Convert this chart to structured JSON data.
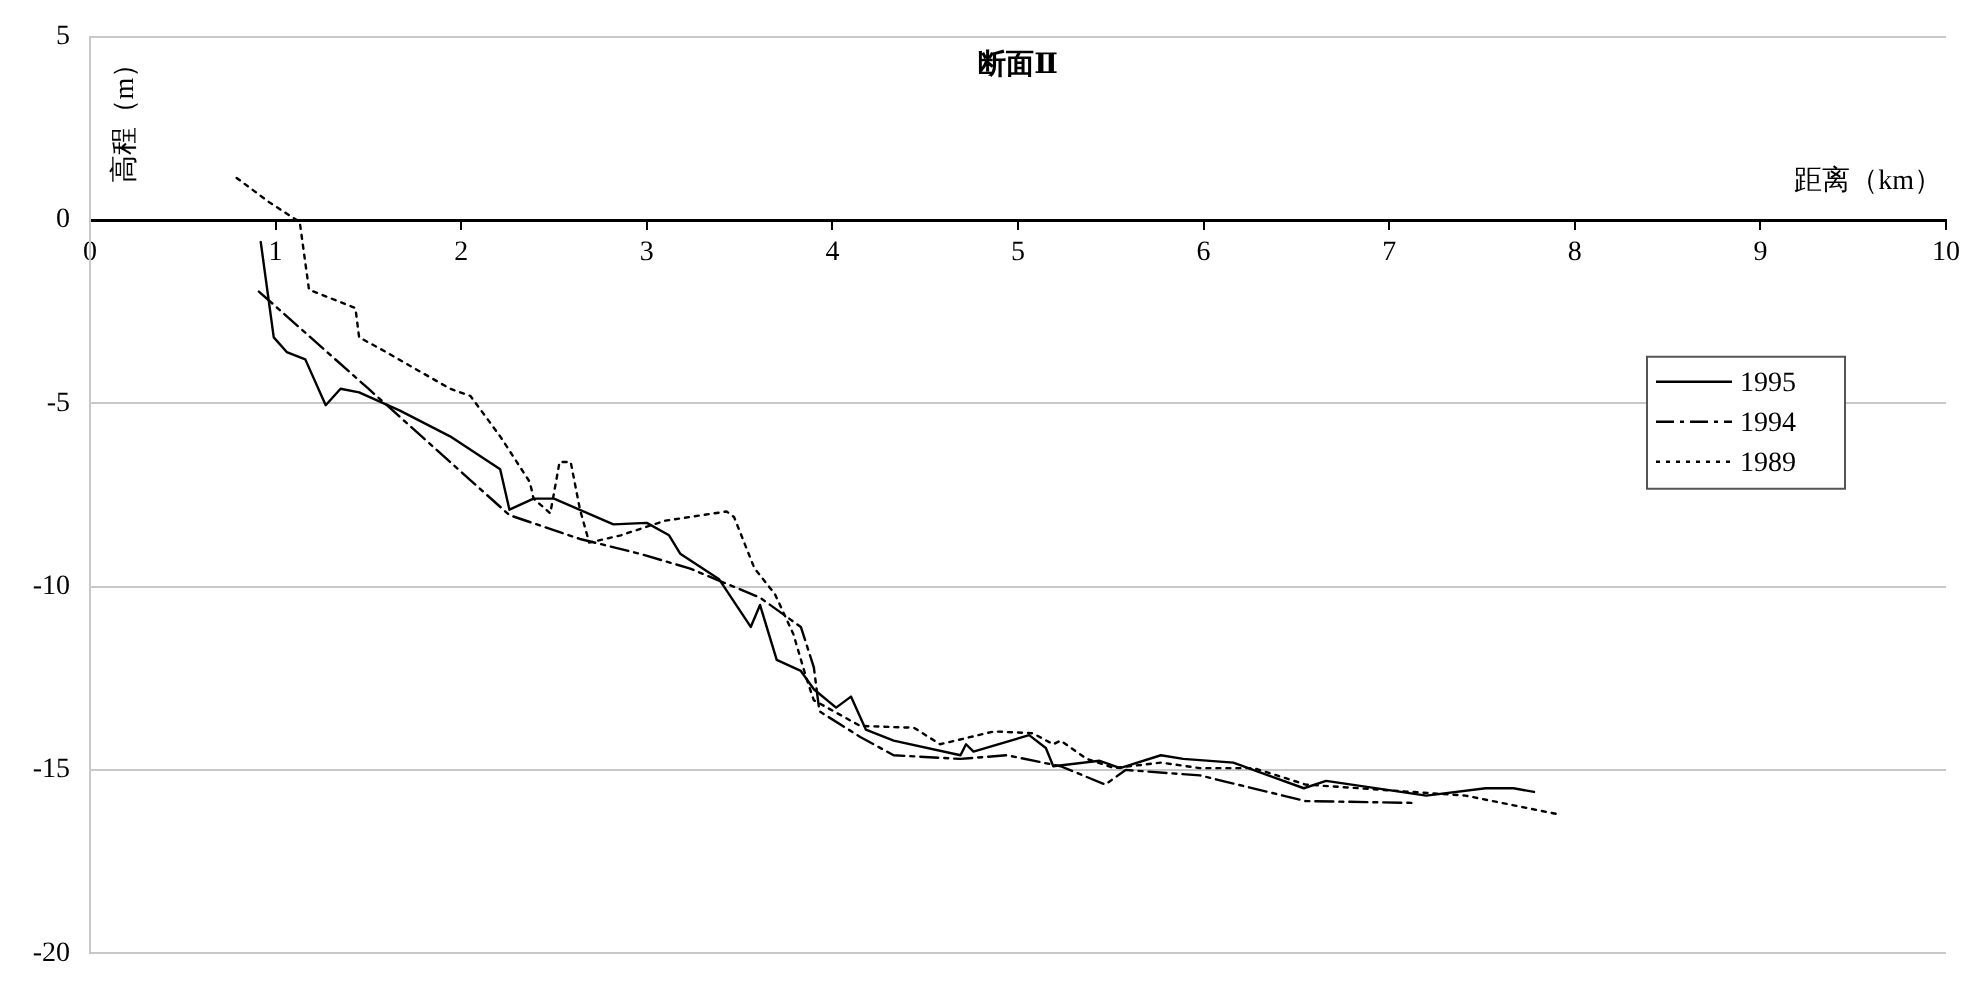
{
  "chart_data": {
    "type": "line",
    "title": "断面Ⅱ",
    "xlabel": "距离（km）",
    "ylabel": "高程（m）",
    "xlim": [
      0,
      10
    ],
    "xticks": [
      0,
      1,
      2,
      3,
      4,
      5,
      6,
      7,
      8,
      9,
      10
    ],
    "ylim": [
      -20,
      5
    ],
    "yticks": [
      -20,
      -15,
      -10,
      -5,
      0,
      5
    ],
    "grid": "y",
    "legend": "right",
    "marker": "none",
    "series": [
      {
        "name": "1995",
        "color": "#000000",
        "line_style": "solid",
        "x": [
          0.92,
          0.99,
          1.06,
          1.16,
          1.27,
          1.35,
          1.45,
          1.67,
          1.94,
          2.21,
          2.26,
          2.39,
          2.5,
          2.82,
          3.0,
          3.12,
          3.18,
          3.39,
          3.56,
          3.61,
          3.7,
          3.83,
          3.9,
          4.02,
          4.1,
          4.18,
          4.33,
          4.69,
          4.72,
          4.76,
          5.06,
          5.15,
          5.19,
          5.44,
          5.55,
          5.77,
          5.89,
          6.16,
          6.54,
          6.66,
          7.2,
          7.52,
          7.67,
          7.78
        ],
        "values": [
          -0.6,
          -3.2,
          -3.6,
          -3.8,
          -5.05,
          -4.6,
          -4.7,
          -5.2,
          -5.9,
          -6.8,
          -7.9,
          -7.6,
          -7.6,
          -8.3,
          -8.26,
          -8.6,
          -9.1,
          -9.8,
          -11.1,
          -10.5,
          -12.0,
          -12.3,
          -12.8,
          -13.3,
          -13.0,
          -13.9,
          -14.2,
          -14.6,
          -14.3,
          -14.5,
          -14.05,
          -14.4,
          -14.9,
          -14.75,
          -14.95,
          -14.6,
          -14.7,
          -14.8,
          -15.5,
          -15.3,
          -15.7,
          -15.5,
          -15.5,
          -15.6
        ]
      },
      {
        "name": "1994",
        "color": "#000000",
        "line_style": "dashed",
        "x": [
          0.91,
          1.5,
          2.26,
          2.64,
          2.96,
          3.23,
          3.61,
          3.83,
          3.9,
          3.93,
          4.15,
          4.33,
          4.69,
          4.94,
          5.23,
          5.47,
          5.58,
          5.98,
          6.55,
          7.13
        ],
        "values": [
          -1.95,
          -4.6,
          -8.05,
          -8.7,
          -9.1,
          -9.5,
          -10.3,
          -11.1,
          -12.2,
          -13.4,
          -14.1,
          -14.6,
          -14.7,
          -14.6,
          -14.9,
          -15.4,
          -15.0,
          -15.15,
          -15.85,
          -15.9
        ]
      },
      {
        "name": "1989",
        "color": "#000000",
        "line_style": "dotted",
        "x": [
          0.79,
          0.97,
          1.13,
          1.18,
          1.43,
          1.45,
          1.56,
          1.94,
          2.05,
          2.21,
          2.37,
          2.39,
          2.48,
          2.53,
          2.59,
          2.64,
          2.69,
          2.86,
          3.1,
          3.43,
          3.47,
          3.58,
          3.69,
          3.79,
          3.86,
          3.9,
          4.15,
          4.44,
          4.58,
          4.87,
          5.08,
          5.19,
          5.23,
          5.37,
          5.52,
          5.77,
          5.98,
          6.27,
          6.55,
          7.41,
          7.9
        ],
        "values": [
          1.15,
          0.47,
          -0.05,
          -1.9,
          -2.4,
          -3.2,
          -3.5,
          -4.6,
          -4.8,
          -5.9,
          -7.15,
          -7.6,
          -8.0,
          -6.6,
          -6.6,
          -7.9,
          -8.8,
          -8.6,
          -8.2,
          -7.95,
          -8.1,
          -9.5,
          -10.2,
          -11.3,
          -12.5,
          -13.1,
          -13.8,
          -13.85,
          -14.3,
          -13.95,
          -14.0,
          -14.3,
          -14.2,
          -14.7,
          -14.95,
          -14.8,
          -14.95,
          -14.95,
          -15.4,
          -15.7,
          -16.2
        ]
      }
    ]
  }
}
